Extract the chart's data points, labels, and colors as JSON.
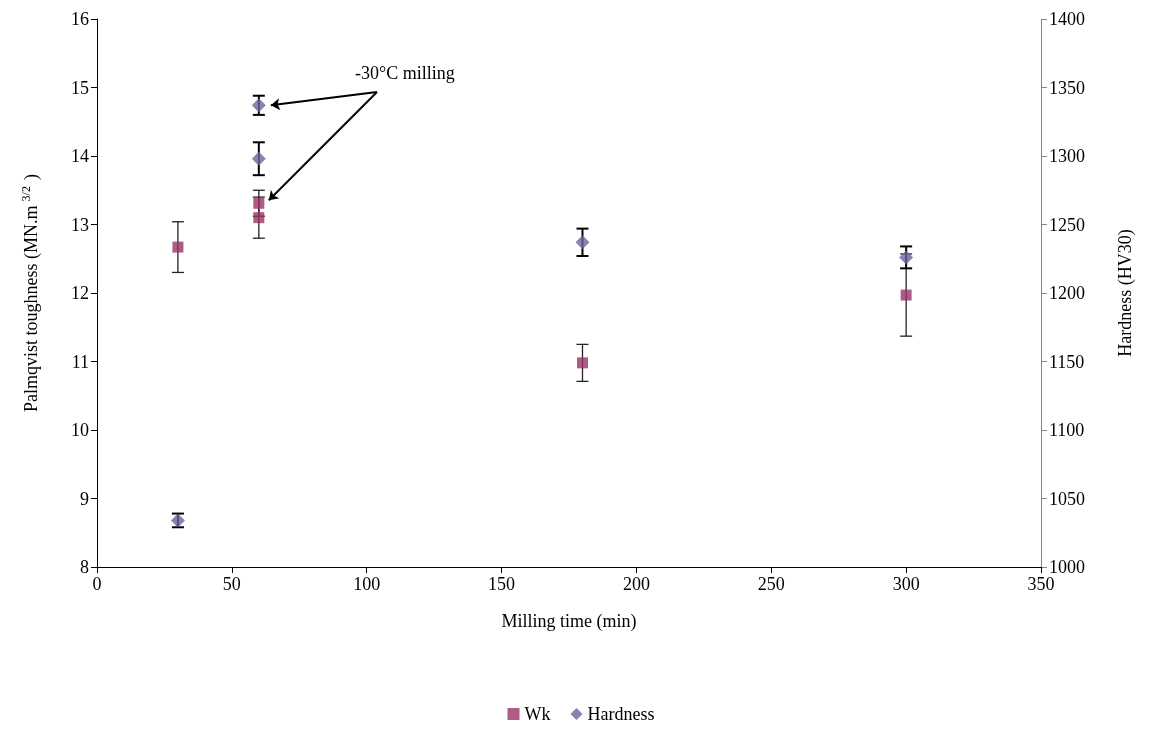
{
  "chart_data": {
    "type": "scatter",
    "xlabel": "Milling time (min)",
    "ylabel": "Palmqvist toughness (MN.m$^{3/2}$)",
    "y2label": "Hardness (HV30)",
    "xlim": [
      0,
      350
    ],
    "xticks": [
      0,
      50,
      100,
      150,
      200,
      250,
      300,
      350
    ],
    "ylim": [
      8,
      16
    ],
    "yticks": [
      8,
      9,
      10,
      11,
      12,
      13,
      14,
      15,
      16
    ],
    "y2lim": [
      1000,
      1400
    ],
    "y2ticks": [
      1000,
      1050,
      1100,
      1150,
      1200,
      1250,
      1300,
      1350,
      1400
    ],
    "series": [
      {
        "name": "Wk",
        "color": "#993366",
        "marker": "square",
        "x": [
          30,
          60,
          60,
          180,
          300
        ],
        "values": [
          12.67,
          13.1,
          13.31,
          10.98,
          11.97
        ],
        "errors": [
          0.37,
          0.3,
          0.19,
          0.27,
          0.6
        ]
      },
      {
        "name": "Hardness",
        "color": "#666699",
        "marker": "diamond",
        "axis": "y2",
        "x": [
          30,
          60,
          60,
          180,
          300
        ],
        "values": [
          1034,
          1298,
          1337,
          1237,
          1226
        ],
        "errors": [
          5,
          12,
          7,
          10,
          8
        ]
      }
    ],
    "annotations": [
      "-30°C milling"
    ],
    "grid": false,
    "legend": "bottom"
  }
}
